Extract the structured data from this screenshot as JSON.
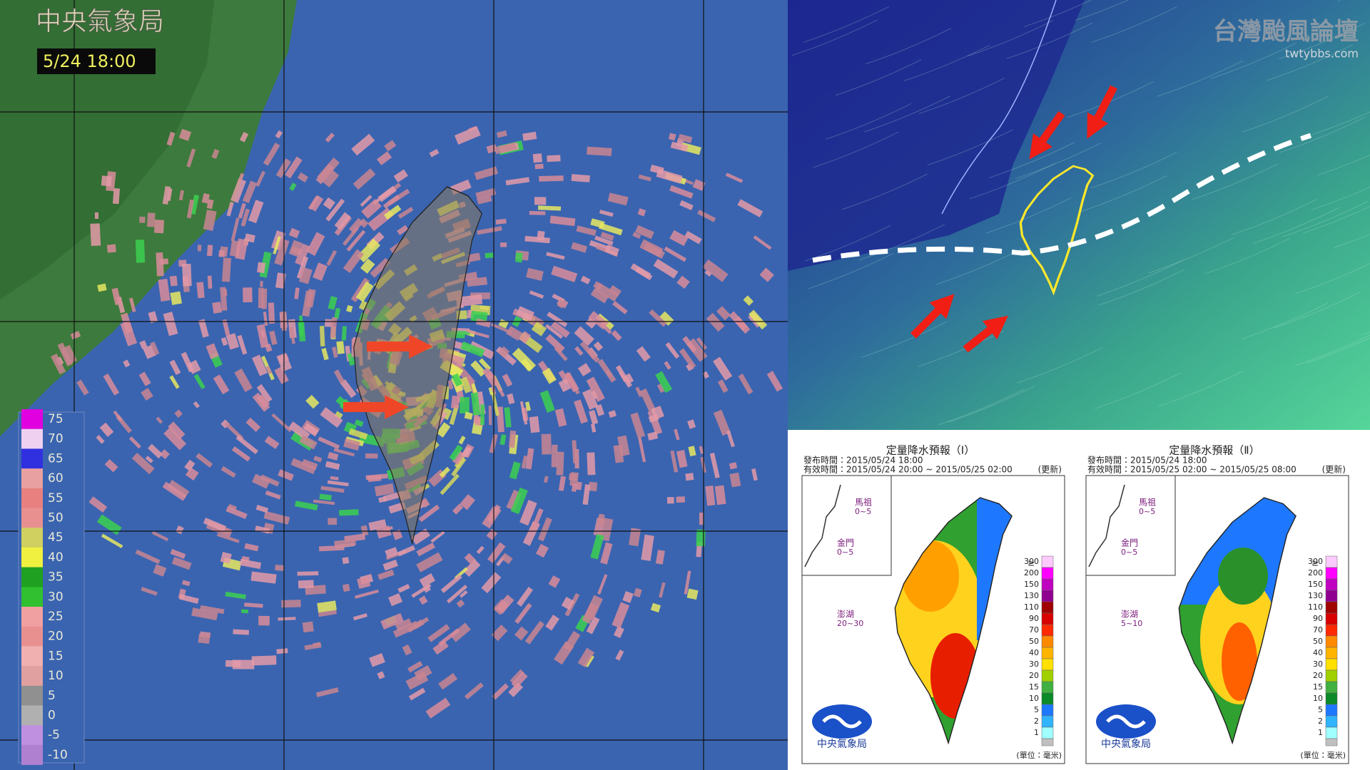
{
  "radar": {
    "agency": "中央氣象局",
    "time": "5/24 18:00",
    "legend": [
      75,
      70,
      65,
      60,
      55,
      50,
      45,
      40,
      35,
      30,
      25,
      20,
      15,
      10,
      5,
      0,
      -5,
      -10
    ]
  },
  "wind": {
    "site_title": "台灣颱風論壇",
    "site_url": "twtybbs.com"
  },
  "forecasts": [
    {
      "title": "定量降水預報（Ⅰ）",
      "issued": "發布時間：2015/05/24 18:00",
      "valid": "有效時間：2015/05/24 20:00 ~ 2015/05/25 02:00",
      "status": "(更新)",
      "islands": [
        {
          "name": "馬祖",
          "range": "0~5"
        },
        {
          "name": "金門",
          "range": "0~5"
        },
        {
          "name": "澎湖",
          "range": "20~30"
        }
      ],
      "legend_sign": "≥",
      "legend": [
        300,
        200,
        150,
        130,
        110,
        90,
        70,
        50,
        40,
        30,
        20,
        15,
        10,
        5,
        2,
        1
      ],
      "agency": "中央氣象局",
      "unit": "(單位：毫米)"
    },
    {
      "title": "定量降水預報（Ⅱ）",
      "issued": "發布時間：2015/05/24 18:00",
      "valid": "有效時間：2015/05/25 02:00 ~ 2015/05/25 08:00",
      "status": "(更新)",
      "islands": [
        {
          "name": "馬祖",
          "range": "0~5"
        },
        {
          "name": "金門",
          "range": "0~5"
        },
        {
          "name": "澎湖",
          "range": "5~10"
        }
      ],
      "legend_sign": "≥",
      "legend": [
        300,
        200,
        150,
        130,
        110,
        90,
        70,
        50,
        40,
        30,
        20,
        15,
        10,
        5,
        2,
        1
      ],
      "agency": "中央氣象局",
      "unit": "(單位：毫米)"
    }
  ]
}
